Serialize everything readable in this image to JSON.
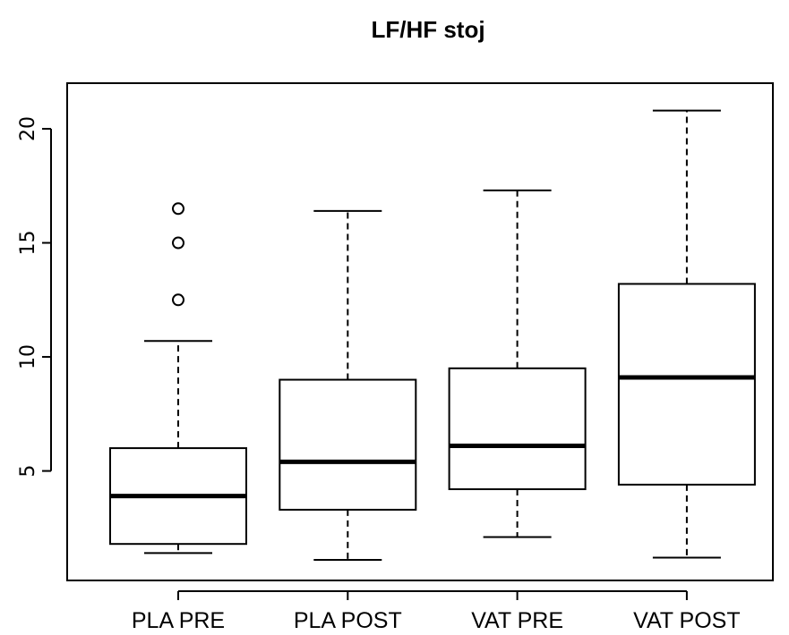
{
  "chart_data": {
    "type": "box",
    "title": "LF/HF stoj",
    "xlabel": "",
    "ylabel": "",
    "categories": [
      "PLA PRE",
      "PLA POST",
      "VAT PRE",
      "VAT POST"
    ],
    "y_ticks": [
      5,
      10,
      15,
      20
    ],
    "y_tick_labels": [
      "5",
      "10",
      "15",
      "20"
    ],
    "ylim": [
      0.2,
      22.0
    ],
    "grid": false,
    "boxes": [
      {
        "category": "PLA PRE",
        "whisker_low": 1.4,
        "q1": 1.8,
        "median": 3.9,
        "q3": 6.0,
        "whisker_high": 10.7,
        "outliers": [
          12.5,
          15.0,
          16.5
        ]
      },
      {
        "category": "PLA POST",
        "whisker_low": 1.1,
        "q1": 3.3,
        "median": 5.4,
        "q3": 9.0,
        "whisker_high": 16.4,
        "outliers": []
      },
      {
        "category": "VAT PRE",
        "whisker_low": 2.1,
        "q1": 4.2,
        "median": 6.1,
        "q3": 9.5,
        "whisker_high": 17.3,
        "outliers": []
      },
      {
        "category": "VAT POST",
        "whisker_low": 1.2,
        "q1": 4.4,
        "median": 9.1,
        "q3": 13.2,
        "whisker_high": 20.8,
        "outliers": []
      }
    ]
  }
}
